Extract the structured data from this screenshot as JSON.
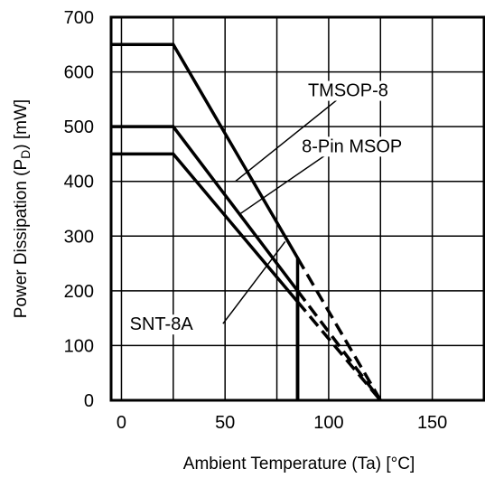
{
  "chart_data": {
    "type": "line",
    "xlabel": "Ambient Temperature (Ta) [°C]",
    "ylabel_parts": [
      "Power Dissipation (P",
      "D",
      ") [mW]"
    ],
    "xlim": [
      -5,
      175
    ],
    "ylim": [
      0,
      700
    ],
    "x_ticks": [
      0,
      50,
      100,
      150
    ],
    "y_ticks": [
      0,
      100,
      200,
      300,
      400,
      500,
      600,
      700
    ],
    "x_grid": [
      0,
      25,
      50,
      75,
      100,
      125,
      150,
      175
    ],
    "grid": true,
    "series": [
      {
        "name": "TMSOP-8",
        "solid": [
          [
            -5,
            650
          ],
          [
            25,
            650
          ],
          [
            85,
            260
          ],
          [
            85,
            0
          ]
        ],
        "dashed": [
          [
            85,
            260
          ],
          [
            125,
            0
          ]
        ]
      },
      {
        "name": "8-Pin MSOP",
        "solid": [
          [
            -5,
            500
          ],
          [
            25,
            500
          ],
          [
            85,
            200
          ],
          [
            85,
            0
          ]
        ],
        "dashed": [
          [
            85,
            200
          ],
          [
            125,
            0
          ]
        ]
      },
      {
        "name": "SNT-8A",
        "solid": [
          [
            -5,
            450
          ],
          [
            25,
            450
          ],
          [
            85,
            180
          ],
          [
            85,
            0
          ]
        ],
        "dashed": [
          [
            85,
            180
          ],
          [
            125,
            0
          ]
        ]
      }
    ],
    "annotations": [
      {
        "text": "TMSOP-8",
        "label_at": [
          90,
          567
        ],
        "anchor_at": [
          110,
          567
        ],
        "points_to": [
          55,
          400
        ]
      },
      {
        "text": "8-Pin MSOP",
        "label_at": [
          87,
          465
        ],
        "anchor_at": [
          105,
          465
        ],
        "points_to": [
          57,
          340
        ]
      },
      {
        "text": "SNT-8A",
        "label_at": [
          4,
          140
        ],
        "anchor_at": [
          49,
          140
        ],
        "points_to": [
          79,
          290
        ]
      }
    ]
  }
}
